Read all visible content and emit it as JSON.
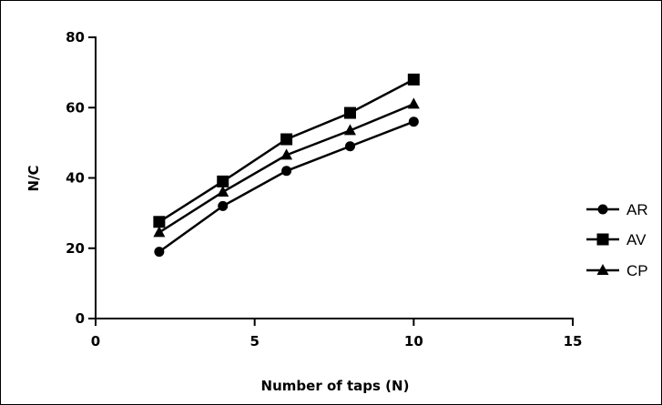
{
  "chart_data": {
    "type": "line",
    "title": "",
    "xlabel": "Number of taps (N)",
    "ylabel": "N/C",
    "xlim": [
      0,
      15
    ],
    "ylim": [
      0,
      80
    ],
    "xticks": [
      0,
      5,
      10,
      15
    ],
    "yticks": [
      0,
      20,
      40,
      60,
      80
    ],
    "grid": false,
    "legend_position": "right",
    "series": [
      {
        "name": "AR",
        "marker": "circle",
        "x": [
          2,
          4,
          6,
          8,
          10
        ],
        "y": [
          19,
          32,
          42,
          49,
          56
        ]
      },
      {
        "name": "AV",
        "marker": "square",
        "x": [
          2,
          4,
          6,
          8,
          10
        ],
        "y": [
          27.5,
          39,
          51,
          58.5,
          68
        ]
      },
      {
        "name": "CP",
        "marker": "triangle",
        "x": [
          2,
          4,
          6,
          8,
          10
        ],
        "y": [
          24.5,
          36,
          46.5,
          53.5,
          61
        ]
      }
    ],
    "colors": {
      "line": "#000000",
      "marker": "#000000",
      "background": "#ffffff"
    }
  }
}
